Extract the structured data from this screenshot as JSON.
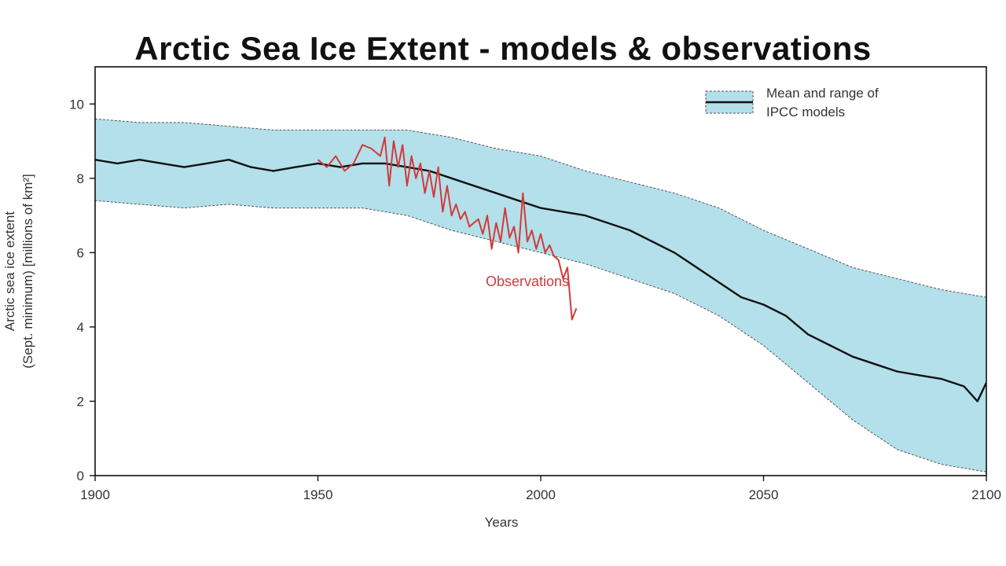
{
  "chart_data": {
    "type": "line",
    "title": "Arctic Sea Ice Extent - models & observations",
    "xlabel": "Years",
    "ylabel_line1": "Arctic sea ice extent",
    "ylabel_line2": "(Sept. minimum) [millions of km²]",
    "xlim": [
      1900,
      2100
    ],
    "ylim": [
      0,
      11
    ],
    "x_ticks": [
      1900,
      1950,
      2000,
      2050,
      2100
    ],
    "y_ticks": [
      0,
      2,
      4,
      6,
      8,
      10
    ],
    "grid": false,
    "legend": {
      "placement": "top-right",
      "line1": "Mean and range of",
      "line2": "IPCC models"
    },
    "annotation": {
      "text": "Observations",
      "x": 1997,
      "y": 5.1
    },
    "colors": {
      "band": "#b3e0ea",
      "mean": "#111111",
      "observations": "#d23a3a"
    },
    "model_range": {
      "x": [
        1900,
        1910,
        1920,
        1930,
        1940,
        1950,
        1960,
        1970,
        1980,
        1990,
        2000,
        2010,
        2020,
        2030,
        2040,
        2050,
        2060,
        2070,
        2080,
        2090,
        2100
      ],
      "upper": [
        9.6,
        9.5,
        9.5,
        9.4,
        9.3,
        9.3,
        9.3,
        9.3,
        9.1,
        8.8,
        8.6,
        8.2,
        7.9,
        7.6,
        7.2,
        6.6,
        6.1,
        5.6,
        5.3,
        5.0,
        4.8
      ],
      "lower": [
        7.4,
        7.3,
        7.2,
        7.3,
        7.2,
        7.2,
        7.2,
        7.0,
        6.6,
        6.3,
        6.0,
        5.7,
        5.3,
        4.9,
        4.3,
        3.5,
        2.5,
        1.5,
        0.7,
        0.3,
        0.1
      ]
    },
    "series": [
      {
        "name": "Mean and range of IPCC models",
        "x": [
          1900,
          1905,
          1910,
          1915,
          1920,
          1925,
          1930,
          1935,
          1940,
          1945,
          1950,
          1955,
          1960,
          1965,
          1970,
          1975,
          1980,
          1985,
          1990,
          1995,
          2000,
          2005,
          2010,
          2015,
          2020,
          2025,
          2030,
          2035,
          2040,
          2045,
          2050,
          2055,
          2060,
          2065,
          2070,
          2075,
          2080,
          2085,
          2090,
          2095,
          2098,
          2100
        ],
        "values": [
          8.5,
          8.4,
          8.5,
          8.4,
          8.3,
          8.4,
          8.5,
          8.3,
          8.2,
          8.3,
          8.4,
          8.3,
          8.4,
          8.4,
          8.3,
          8.2,
          8.0,
          7.8,
          7.6,
          7.4,
          7.2,
          7.1,
          7.0,
          6.8,
          6.6,
          6.3,
          6.0,
          5.6,
          5.2,
          4.8,
          4.6,
          4.3,
          3.8,
          3.5,
          3.2,
          3.0,
          2.8,
          2.7,
          2.6,
          2.4,
          2.0,
          2.5
        ]
      },
      {
        "name": "Observations",
        "x": [
          1950,
          1952,
          1954,
          1956,
          1958,
          1960,
          1962,
          1964,
          1965,
          1966,
          1967,
          1968,
          1969,
          1970,
          1971,
          1972,
          1973,
          1974,
          1975,
          1976,
          1977,
          1978,
          1979,
          1980,
          1981,
          1982,
          1983,
          1984,
          1985,
          1986,
          1987,
          1988,
          1989,
          1990,
          1991,
          1992,
          1993,
          1994,
          1995,
          1996,
          1997,
          1998,
          1999,
          2000,
          2001,
          2002,
          2003,
          2004,
          2005,
          2006,
          2007,
          2008
        ],
        "values": [
          8.5,
          8.3,
          8.6,
          8.2,
          8.4,
          8.9,
          8.8,
          8.6,
          9.1,
          7.8,
          9.0,
          8.3,
          8.9,
          7.8,
          8.6,
          8.0,
          8.4,
          7.6,
          8.2,
          7.5,
          8.3,
          7.1,
          7.8,
          7.0,
          7.3,
          6.9,
          7.1,
          6.7,
          6.8,
          6.9,
          6.5,
          7.0,
          6.1,
          6.8,
          6.3,
          7.2,
          6.4,
          6.7,
          6.0,
          7.6,
          6.3,
          6.6,
          6.1,
          6.5,
          6.0,
          6.2,
          5.9,
          5.8,
          5.3,
          5.6,
          4.2,
          4.5
        ]
      }
    ]
  }
}
